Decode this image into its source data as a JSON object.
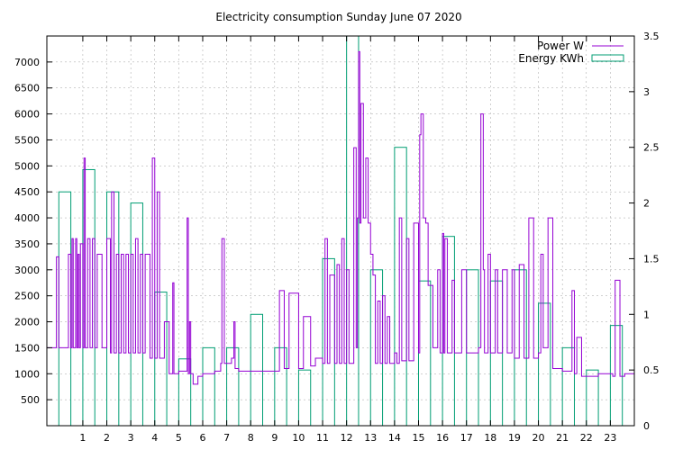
{
  "chart_data": {
    "type": "line",
    "title": "Electricity consumption Sunday June 07 2020",
    "legend": {
      "placement": "top-right",
      "items": [
        {
          "label": "Power W",
          "color": "#9400d3",
          "style": "line"
        },
        {
          "label": "Energy KWh",
          "color": "#009e73",
          "style": "box"
        }
      ]
    },
    "x_axis": {
      "label": "",
      "range": [
        -0.5,
        24
      ],
      "ticks": [
        "1",
        "2",
        "3",
        "4",
        "5",
        "6",
        "7",
        "8",
        "9",
        "10",
        "11",
        "12",
        "13",
        "14",
        "15",
        "16",
        "17",
        "18",
        "19",
        "20",
        "21",
        "22",
        "23"
      ]
    },
    "y_axis_left": {
      "label": "",
      "range": [
        0,
        7500
      ],
      "ticks": [
        "500",
        "1000",
        "1500",
        "2000",
        "2500",
        "3000",
        "3500",
        "4000",
        "4500",
        "5000",
        "5500",
        "6000",
        "6500",
        "7000"
      ]
    },
    "y_axis_right": {
      "label": "",
      "range": [
        0,
        3.5
      ],
      "ticks": [
        "0",
        "0.5",
        "1",
        "1.5",
        "2",
        "2.5",
        "3",
        "3.5"
      ]
    },
    "grid": true,
    "series": [
      {
        "name": "Energy KWh",
        "axis": "right",
        "type": "bar",
        "x": [
          0,
          1,
          2,
          3,
          4,
          5,
          6,
          7,
          8,
          9,
          10,
          11,
          12,
          13,
          14,
          15,
          16,
          17,
          18,
          19,
          20,
          21,
          22,
          23
        ],
        "values": [
          2.1,
          2.3,
          2.1,
          2.0,
          1.2,
          0.6,
          0.7,
          0.7,
          1.0,
          0.7,
          0.5,
          1.5,
          3.5,
          1.4,
          2.5,
          1.3,
          1.7,
          1.4,
          1.3,
          1.4,
          1.1,
          0.7,
          0.5,
          0.9
        ]
      },
      {
        "name": "Power W",
        "axis": "left",
        "type": "line",
        "x": [
          -0.5,
          -0.1,
          0.0,
          0.4,
          0.5,
          0.55,
          0.6,
          0.7,
          0.75,
          0.8,
          0.85,
          0.9,
          1.0,
          1.05,
          1.1,
          1.2,
          1.3,
          1.4,
          1.5,
          1.6,
          1.8,
          2.0,
          2.15,
          2.2,
          2.3,
          2.4,
          2.5,
          2.6,
          2.7,
          2.8,
          2.9,
          3.0,
          3.1,
          3.2,
          3.3,
          3.4,
          3.5,
          3.6,
          3.8,
          3.9,
          4.0,
          4.1,
          4.2,
          4.4,
          4.6,
          4.75,
          4.8,
          5.0,
          5.2,
          5.35,
          5.4,
          5.45,
          5.5,
          5.6,
          5.75,
          5.8,
          6.0,
          6.5,
          6.75,
          6.8,
          6.9,
          7.0,
          7.2,
          7.3,
          7.35,
          7.5,
          7.6,
          8.0,
          9.0,
          9.2,
          9.4,
          9.6,
          10.0,
          10.2,
          10.5,
          10.7,
          11.0,
          11.1,
          11.2,
          11.3,
          11.5,
          11.6,
          11.7,
          11.8,
          11.9,
          12.0,
          12.1,
          12.3,
          12.4,
          12.45,
          12.5,
          12.55,
          12.6,
          12.7,
          12.8,
          12.9,
          13.0,
          13.1,
          13.2,
          13.3,
          13.4,
          13.5,
          13.6,
          13.7,
          13.8,
          14.0,
          14.1,
          14.2,
          14.3,
          14.5,
          14.6,
          14.8,
          15.0,
          15.05,
          15.1,
          15.2,
          15.3,
          15.4,
          15.6,
          15.8,
          15.9,
          16.0,
          16.05,
          16.1,
          16.2,
          16.4,
          16.5,
          16.6,
          16.8,
          17.0,
          17.2,
          17.5,
          17.6,
          17.7,
          17.75,
          17.8,
          17.9,
          18.0,
          18.2,
          18.3,
          18.5,
          18.7,
          18.9,
          19.0,
          19.2,
          19.4,
          19.6,
          19.8,
          20.0,
          20.1,
          20.2,
          20.4,
          20.6,
          21.0,
          21.2,
          21.4,
          21.5,
          21.6,
          21.8,
          22.0,
          22.5,
          23.0,
          23.1,
          23.2,
          23.4,
          23.6,
          24.0
        ],
        "values": [
          1500,
          3250,
          1500,
          3300,
          1500,
          3600,
          1500,
          3600,
          1500,
          3300,
          1500,
          3500,
          1500,
          5150,
          1500,
          3600,
          1500,
          3600,
          1500,
          3300,
          1500,
          3600,
          1400,
          4500,
          1400,
          3300,
          1400,
          3300,
          1400,
          3300,
          1400,
          3300,
          1400,
          3600,
          1400,
          3300,
          1400,
          3300,
          1300,
          5150,
          1300,
          4500,
          1300,
          2000,
          1000,
          2750,
          1000,
          1050,
          1050,
          4000,
          1000,
          2000,
          1000,
          800,
          800,
          950,
          1000,
          1050,
          1200,
          3600,
          1200,
          1200,
          1300,
          2000,
          1100,
          1050,
          1050,
          1050,
          1050,
          2600,
          1100,
          2550,
          1100,
          2100,
          1150,
          1300,
          1200,
          3600,
          1200,
          2900,
          1200,
          3100,
          1200,
          3600,
          1200,
          3000,
          1200,
          5350,
          1500,
          4000,
          7200,
          3900,
          6200,
          4000,
          5150,
          3900,
          3300,
          2900,
          1200,
          2400,
          1200,
          2500,
          1200,
          2100,
          1200,
          1400,
          1200,
          4000,
          1250,
          3600,
          1250,
          3900,
          1400,
          5600,
          6000,
          4000,
          3900,
          2700,
          1500,
          3000,
          1400,
          3700,
          1400,
          3600,
          1400,
          2800,
          1400,
          1400,
          3000,
          1400,
          1400,
          1500,
          6000,
          3000,
          1400,
          1400,
          3300,
          1400,
          3000,
          1400,
          3000,
          1400,
          3000,
          1300,
          3100,
          1300,
          4000,
          1300,
          1400,
          3300,
          1500,
          4000,
          1100,
          1050,
          1050,
          2600,
          1000,
          1700,
          950,
          950,
          1000,
          1000,
          950,
          2800,
          950,
          1000,
          1050
        ]
      }
    ]
  }
}
